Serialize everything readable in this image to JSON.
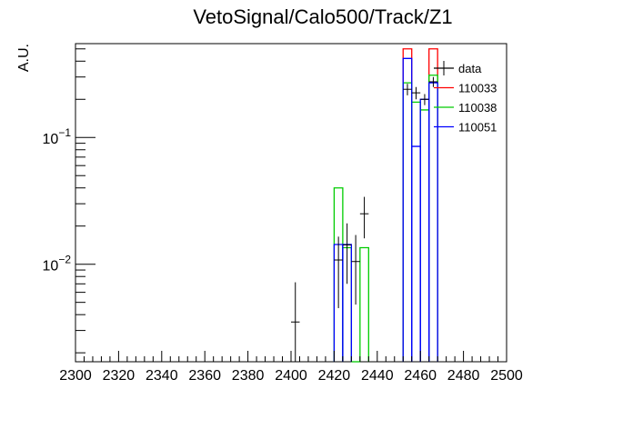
{
  "chart_data": {
    "type": "histogram",
    "title": "VetoSignal/Calo500/Track/Z1",
    "xlabel": "",
    "ylabel": "A.U.",
    "xlim": [
      2300,
      2500
    ],
    "ylim": [
      0.0017,
      0.55
    ],
    "ylog": true,
    "grid": false,
    "legend_position": "top-right",
    "x_ticks": [
      "2300",
      "2320",
      "2340",
      "2360",
      "2380",
      "2400",
      "2420",
      "2440",
      "2460",
      "2480",
      "2500"
    ],
    "y_tick_labels": [
      {
        "base": "10",
        "exp": "−1",
        "value": 0.1
      },
      {
        "base": "10",
        "exp": "−2",
        "value": 0.01
      }
    ],
    "legend": [
      {
        "label": "data",
        "color": "#000000"
      },
      {
        "label": "110033",
        "color": "#ff0000"
      },
      {
        "label": "110038",
        "color": "#00cc00"
      },
      {
        "label": "110051",
        "color": "#0000ff"
      }
    ],
    "series": [
      {
        "name": "110033",
        "color": "#ff0000",
        "bins": [
          {
            "x0": 2452,
            "x1": 2456,
            "y": 0.5
          },
          {
            "x0": 2464,
            "x1": 2468,
            "y": 0.5
          }
        ]
      },
      {
        "name": "110038",
        "color": "#00cc00",
        "bins": [
          {
            "x0": 2420,
            "x1": 2424,
            "y": 0.04
          },
          {
            "x0": 2424,
            "x1": 2428,
            "y": 0.0135
          },
          {
            "x0": 2428,
            "x1": 2432,
            "y": 0.0017
          },
          {
            "x0": 2432,
            "x1": 2436,
            "y": 0.0135
          },
          {
            "x0": 2452,
            "x1": 2456,
            "y": 0.27
          },
          {
            "x0": 2456,
            "x1": 2460,
            "y": 0.19
          },
          {
            "x0": 2460,
            "x1": 2464,
            "y": 0.165
          },
          {
            "x0": 2464,
            "x1": 2468,
            "y": 0.31
          }
        ]
      },
      {
        "name": "110051",
        "color": "#0000ff",
        "bins": [
          {
            "x0": 2420,
            "x1": 2424,
            "y": 0.0143
          },
          {
            "x0": 2424,
            "x1": 2428,
            "y": 0.0143
          },
          {
            "x0": 2452,
            "x1": 2456,
            "y": 0.42
          },
          {
            "x0": 2456,
            "x1": 2460,
            "y": 0.085
          },
          {
            "x0": 2460,
            "x1": 2464,
            "y": 0.2
          },
          {
            "x0": 2464,
            "x1": 2468,
            "y": 0.27
          }
        ]
      },
      {
        "name": "data",
        "color": "#000000",
        "points": [
          {
            "x": 2402,
            "y": 0.0035,
            "ylo": 0.0017,
            "yhi": 0.0072
          },
          {
            "x": 2422,
            "y": 0.0108,
            "ylo": 0.0045,
            "yhi": 0.0165
          },
          {
            "x": 2426,
            "y": 0.0142,
            "ylo": 0.007,
            "yhi": 0.021
          },
          {
            "x": 2430,
            "y": 0.0105,
            "ylo": 0.0048,
            "yhi": 0.017
          },
          {
            "x": 2434,
            "y": 0.025,
            "ylo": 0.016,
            "yhi": 0.034
          },
          {
            "x": 2454,
            "y": 0.24,
            "ylo": 0.215,
            "yhi": 0.265
          },
          {
            "x": 2458,
            "y": 0.225,
            "ylo": 0.2,
            "yhi": 0.25
          },
          {
            "x": 2462,
            "y": 0.2,
            "ylo": 0.18,
            "yhi": 0.22
          },
          {
            "x": 2466,
            "y": 0.275,
            "ylo": 0.25,
            "yhi": 0.3
          }
        ]
      }
    ]
  }
}
